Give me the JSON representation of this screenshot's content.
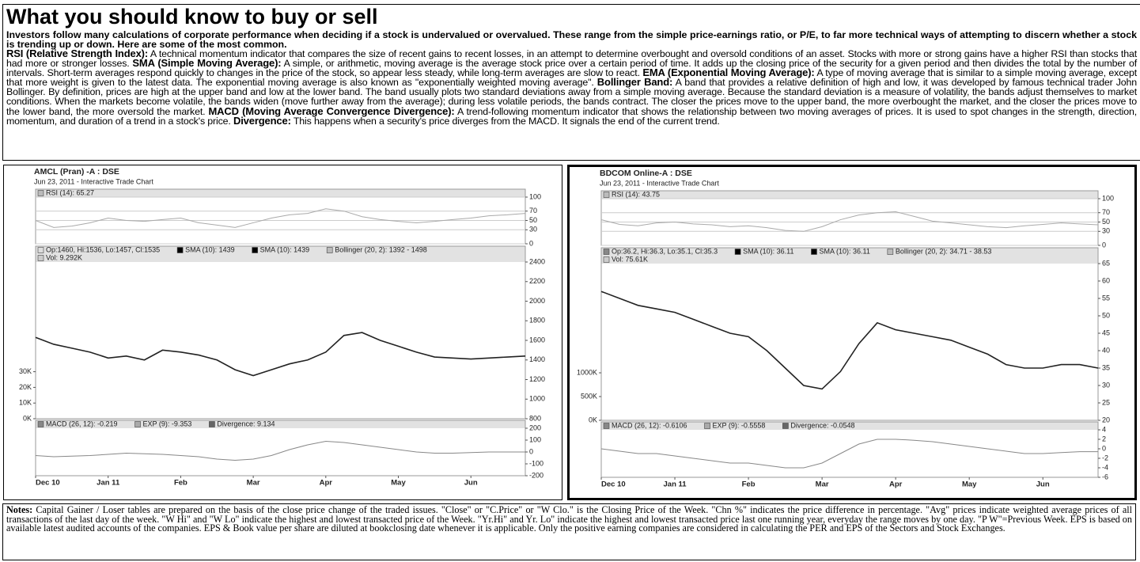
{
  "article": {
    "title": "What you should know to buy or sell",
    "intro": "Investors follow many calculations of corporate performance when deciding if a stock is undervalued or overvalued.  These range from the simple price-earnings ratio, or P/E, to far more technical ways of attempting to discern whether a stock is trending up or down. Here are some of the most common.",
    "terms": [
      {
        "term": "RSI (Relative Strength Index):",
        "text": "A technical momentum indicator that compares the size of recent gains to recent losses, in an attempt to determine overbought and oversold conditions of an asset. Stocks with more or strong gains have a higher RSI than stocks that had more or stronger losses."
      },
      {
        "term": "SMA (Simple Moving Average):",
        "text": "A simple, or arithmetic, moving average is the average stock price over a certain period of time. It adds up the closing price of the security for a given period and then divides the total by the number of intervals. Short-term averages respond quickly to changes in the price of the stock, so appear less steady, while long-term averages are slow to react."
      },
      {
        "term": "EMA (Exponential Moving Average):",
        "text": "A type of moving average that is similar to a simple moving average, except that more weight is given to the latest data. The exponential moving average is also known as \"exponentially weighted moving average\"."
      },
      {
        "term": "Bollinger Band:",
        "text": "A band that provides a relative definition of high and low, it was developed by famous technical trader John Bollinger. By definition, prices are high at the upper band and low at the lower band. The band usually plots two standard deviations away from a simple moving average. Because the standard deviation is a measure of volatility, the bands adjust themselves to market conditions. When the markets become volatile, the bands widen (move further away from the average); during less volatile periods, the bands contract. The closer the prices move to the upper band, the more overbought the market, and the closer the prices move to the lower band, the more oversold the market."
      },
      {
        "term": "MACD (Moving Average Convergence Divergence):",
        "text": "A trend-following momentum indicator that shows the relationship between two moving averages of prices. It is used to spot changes in the strength, direction, momentum, and duration of a trend in a stock's price."
      },
      {
        "term": "Divergence:",
        "text": "This happens when a security's price diverges from the MACD. It signals the end of the current trend."
      }
    ]
  },
  "chart_data": [
    {
      "type": "line",
      "title": "AMCL (Pran) -A : DSE",
      "subtitle": "Jun 23, 2011 - Interactive Trade Chart",
      "categories": [
        "Dec 10",
        null,
        null,
        null,
        "Jan 11",
        null,
        null,
        null,
        "Feb",
        null,
        null,
        null,
        "Mar",
        null,
        null,
        null,
        "Apr",
        null,
        null,
        null,
        "May",
        null,
        null,
        null,
        "Jun",
        null,
        null,
        null
      ],
      "rsi_label": "RSI (14): 65.27",
      "rsi_color": "#aaaaaa",
      "rsi_ylim": [
        0,
        100
      ],
      "rsi_yticks": [
        0,
        30,
        50,
        70,
        100
      ],
      "rsi_values": [
        50,
        35,
        38,
        45,
        55,
        50,
        48,
        52,
        55,
        45,
        40,
        35,
        45,
        55,
        62,
        65,
        75,
        70,
        58,
        52,
        48,
        45,
        48,
        52,
        55,
        60,
        62,
        65
      ],
      "legend": [
        {
          "label": "Op:1460, Hi:1536, Lo:1457, Cl:1535",
          "color": "#dddddd"
        },
        {
          "label": "SMA (10): 1439",
          "color": "#000000"
        },
        {
          "label": "SMA (10): 1439",
          "color": "#000000"
        },
        {
          "label": "Bollinger (20, 2): 1392 - 1498",
          "color": "#bbbbbb"
        }
      ],
      "vol_label": "Vol: 9.292K",
      "ylim": [
        800,
        2400
      ],
      "yticks": [
        800,
        1000,
        1200,
        1400,
        1600,
        1800,
        2000,
        2200,
        2400
      ],
      "color": "#222222",
      "values": [
        1630,
        1560,
        1520,
        1480,
        1420,
        1440,
        1400,
        1500,
        1480,
        1450,
        1400,
        1300,
        1240,
        1300,
        1360,
        1400,
        1480,
        1650,
        1680,
        1600,
        1540,
        1480,
        1430,
        1420,
        1410,
        1420,
        1430,
        1440
      ],
      "vol_ylim": [
        0,
        100000
      ],
      "vol_yticks": [
        {
          "value": 0,
          "label": "0K"
        },
        {
          "value": 10000,
          "label": "10K"
        },
        {
          "value": 20000,
          "label": "20K"
        },
        {
          "value": 30000,
          "label": "30K"
        }
      ],
      "macd_legend": [
        {
          "label": "MACD (26, 12): -0.219",
          "color": "#888888"
        },
        {
          "label": "EXP (9): -9.353",
          "color": "#aaaaaa"
        },
        {
          "label": "Divergence: 9.134",
          "color": "#666666"
        }
      ],
      "macd_ylim": [
        -200,
        200
      ],
      "macd_yticks": [
        -200,
        -100,
        0,
        100,
        200
      ],
      "macd_color": "#888888",
      "macd_values": [
        -30,
        -40,
        -35,
        -30,
        -20,
        -10,
        -15,
        -20,
        -30,
        -40,
        -60,
        -70,
        -60,
        -30,
        20,
        60,
        90,
        80,
        60,
        40,
        20,
        0,
        -10,
        -10,
        -5,
        0,
        0,
        0
      ]
    },
    {
      "type": "line",
      "title": "BDCOM Online-A : DSE",
      "subtitle": "Jun 23, 2011 - Interactive Trade Chart",
      "categories": [
        "Dec 10",
        null,
        null,
        null,
        "Jan 11",
        null,
        null,
        null,
        "Feb",
        null,
        null,
        null,
        "Mar",
        null,
        null,
        null,
        "Apr",
        null,
        null,
        null,
        "May",
        null,
        null,
        null,
        "Jun",
        null,
        null,
        null
      ],
      "rsi_label": "RSI (14): 43.75",
      "rsi_color": "#aaaaaa",
      "rsi_ylim": [
        0,
        100
      ],
      "rsi_yticks": [
        0,
        30,
        50,
        70,
        100
      ],
      "rsi_values": [
        55,
        45,
        42,
        48,
        50,
        46,
        44,
        40,
        42,
        38,
        32,
        30,
        40,
        55,
        65,
        70,
        72,
        62,
        52,
        48,
        44,
        40,
        38,
        42,
        45,
        48,
        46,
        44
      ],
      "legend": [
        {
          "label": "Op:36.2, Hi:36.3, Lo:35.1, Cl:35.3",
          "color": "#888888"
        },
        {
          "label": "SMA (10): 36.11",
          "color": "#000000"
        },
        {
          "label": "SMA (10): 36.11",
          "color": "#000000"
        },
        {
          "label": "Bollinger (20, 2): 34.71 - 38.53",
          "color": "#bbbbbb"
        }
      ],
      "vol_label": "Vol: 75.61K",
      "ylim": [
        20,
        65
      ],
      "yticks": [
        20,
        25,
        30,
        35,
        40,
        45,
        50,
        55,
        60,
        65
      ],
      "color": "#222222",
      "values": [
        57,
        55,
        53,
        52,
        51,
        49,
        47,
        45,
        44,
        40,
        35,
        30,
        29,
        34,
        42,
        48,
        46,
        45,
        44,
        43,
        41,
        39,
        36,
        35,
        35,
        36,
        36,
        35
      ],
      "vol_ylim": [
        0,
        3300000
      ],
      "vol_yticks": [
        {
          "value": 0,
          "label": "0K"
        },
        {
          "value": 500000,
          "label": "500K"
        },
        {
          "value": 1000000,
          "label": "1000K"
        }
      ],
      "macd_legend": [
        {
          "label": "MACD (26, 12): -0.6106",
          "color": "#888888"
        },
        {
          "label": "EXP (9): -0.5558",
          "color": "#aaaaaa"
        },
        {
          "label": "Divergence: -0.0548",
          "color": "#666666"
        }
      ],
      "macd_ylim": [
        -6,
        4
      ],
      "macd_yticks": [
        -6,
        -4,
        -2,
        0,
        2,
        4
      ],
      "macd_color": "#888888",
      "macd_values": [
        0,
        -0.5,
        -1,
        -1,
        -1.5,
        -2,
        -2.5,
        -3,
        -3,
        -3.5,
        -4,
        -4,
        -3,
        -1,
        1,
        2,
        2,
        1.8,
        1.5,
        1,
        0.5,
        0,
        -0.5,
        -1,
        -1,
        -0.8,
        -0.6,
        -0.6
      ]
    }
  ],
  "notes": {
    "label": "Notes:",
    "text": "Capital Gainer / Loser tables are prepared on the basis of the close price change of the traded issues. \"Close\" or \"C.Price\" or \"W Clo.\" is the Closing Price of the Week. \"Chn %\" indicates the price difference in percentage. \"Avg\" prices indicate weighted average prices of all transactions of the last day of the week.  \"W Hi\" and \"W Lo\" indicate the highest and lowest transacted price of the Week.  \"Yr.Hi\" and Yr. Lo\" indicate the highest and lowest transacted price last one running year, everyday the range moves by one day. \"P W\"=Previous Week. EPS is based on available latest audited accounts of the companies. EPS & Book value per share are diluted at bookclosing date whenever it is applicable. Only the positive earning companies are considered in calculating the PER and EPS of the Sectors and Stock Exchanges."
  }
}
